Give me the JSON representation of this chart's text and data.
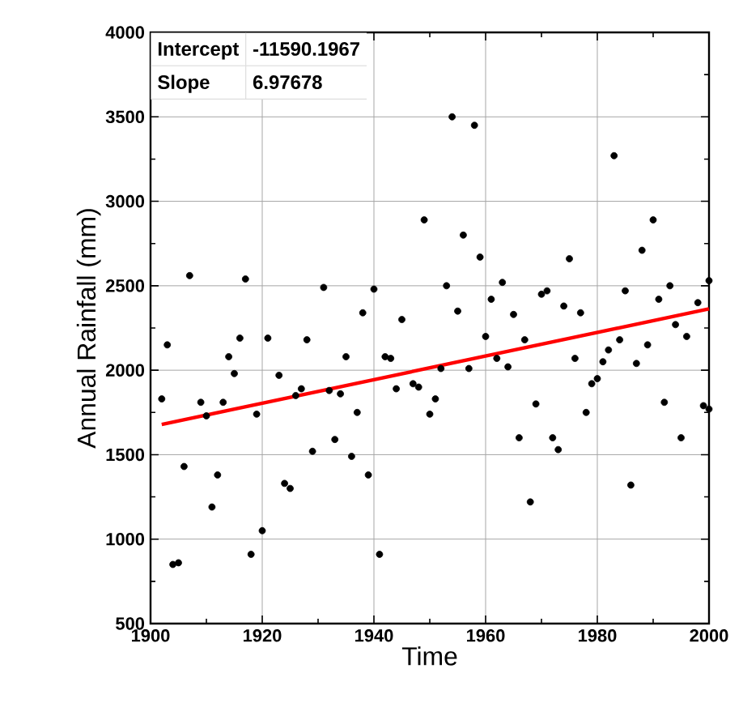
{
  "chart_data": {
    "type": "scatter",
    "xlabel": "Time",
    "ylabel": "Annual Rainfall (mm)",
    "xlim": [
      1900,
      2000
    ],
    "xticks": [
      1900,
      1920,
      1940,
      1960,
      1980,
      2000
    ],
    "ylim": [
      500,
      4000
    ],
    "yticks": [
      500,
      1000,
      1500,
      2000,
      2500,
      3000,
      3500,
      4000
    ],
    "grid": true,
    "marker": "circle",
    "annotations": [
      "Intercept",
      "-11590.1967",
      "Slope",
      "6.97678"
    ],
    "series": [
      {
        "color": "#000000",
        "x": [
          1902,
          1903,
          1907,
          1904,
          1905,
          1906,
          1909,
          1910,
          1911,
          1912,
          1913,
          1914,
          1915,
          1916,
          1917,
          1918,
          1919,
          1920,
          1921,
          1923,
          1924,
          1925,
          1926,
          1927,
          1928,
          1929,
          1931,
          1932,
          1933,
          1934,
          1935,
          1936,
          1937,
          1938,
          1939,
          1940,
          1941,
          1942,
          1943,
          1944,
          1945,
          1947,
          1948,
          1949,
          1950,
          1951,
          1952,
          1953,
          1954,
          1955,
          1956,
          1957,
          1958,
          1959,
          1960,
          1961,
          1962,
          1963,
          1964,
          1965,
          1966,
          1967,
          1968,
          1969,
          1970,
          1971,
          1972,
          1973,
          1974,
          1975,
          1976,
          1977,
          1978,
          1979,
          1980,
          1981,
          1982,
          1983,
          1984,
          1985,
          1986,
          1987,
          1988,
          1989,
          1990,
          1991,
          1992,
          1993,
          1994,
          1995,
          1996,
          1998,
          1999,
          2000,
          2000
        ],
        "values": [
          1830,
          2150,
          2560,
          850,
          860,
          1430,
          1810,
          1730,
          1190,
          1380,
          1810,
          2080,
          1980,
          2190,
          2540,
          910,
          1740,
          1050,
          2190,
          1970,
          1330,
          1300,
          1850,
          1890,
          2180,
          1520,
          2490,
          1880,
          1590,
          1860,
          2080,
          1490,
          1750,
          2340,
          1380,
          2480,
          910,
          2080,
          2070,
          1890,
          2300,
          1920,
          1900,
          2890,
          1740,
          1830,
          2010,
          2500,
          3500,
          2350,
          2800,
          2010,
          3450,
          2670,
          2200,
          2420,
          2070,
          2520,
          2020,
          2330,
          1600,
          2180,
          1220,
          1800,
          2450,
          2470,
          1600,
          1530,
          2380,
          2660,
          2070,
          2340,
          1750,
          1920,
          1950,
          2050,
          2120,
          3270,
          2180,
          2470,
          1320,
          2040,
          2710,
          2150,
          2890,
          2420,
          1810,
          2500,
          2270,
          1600,
          2200,
          2400,
          1790,
          1770,
          2530
        ]
      },
      {
        "type": "line",
        "color": "#ff0000",
        "marker": "none",
        "x": [
          1902,
          2000
        ],
        "values": [
          1679,
          2363
        ]
      }
    ]
  }
}
